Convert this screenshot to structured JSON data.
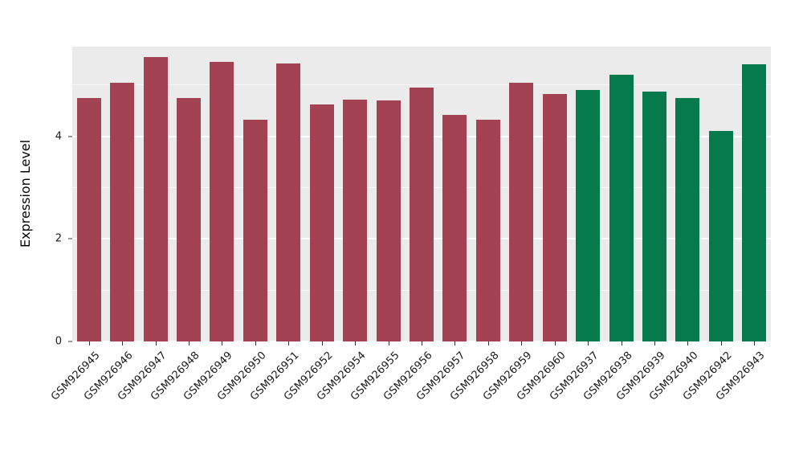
{
  "chart_data": {
    "type": "bar",
    "title": "",
    "xlabel": "",
    "ylabel": "Expression Level",
    "ylim": [
      0,
      5.75
    ],
    "y_major_ticks": [
      0,
      2,
      4
    ],
    "y_minor_ticks": [
      1,
      3,
      5
    ],
    "y_tick_labels": [
      "0",
      "2",
      "4"
    ],
    "grid": "on",
    "legend": "none",
    "panel_background": "#EBEBEB",
    "grid_color": "#FFFFFF",
    "group_colors": {
      "red": "#A34252",
      "green": "#067A4C"
    },
    "bars": [
      {
        "label": "GSM926945",
        "value": 4.75,
        "group": "red"
      },
      {
        "label": "GSM926946",
        "value": 5.05,
        "group": "red"
      },
      {
        "label": "GSM926947",
        "value": 5.55,
        "group": "red"
      },
      {
        "label": "GSM926948",
        "value": 4.75,
        "group": "red"
      },
      {
        "label": "GSM926949",
        "value": 5.45,
        "group": "red"
      },
      {
        "label": "GSM926950",
        "value": 4.32,
        "group": "red"
      },
      {
        "label": "GSM926951",
        "value": 5.42,
        "group": "red"
      },
      {
        "label": "GSM926952",
        "value": 4.62,
        "group": "red"
      },
      {
        "label": "GSM926954",
        "value": 4.72,
        "group": "red"
      },
      {
        "label": "GSM926955",
        "value": 4.7,
        "group": "red"
      },
      {
        "label": "GSM926956",
        "value": 4.95,
        "group": "red"
      },
      {
        "label": "GSM926957",
        "value": 4.42,
        "group": "red"
      },
      {
        "label": "GSM926958",
        "value": 4.32,
        "group": "red"
      },
      {
        "label": "GSM926959",
        "value": 5.05,
        "group": "red"
      },
      {
        "label": "GSM926960",
        "value": 4.83,
        "group": "red"
      },
      {
        "label": "GSM926937",
        "value": 4.9,
        "group": "green"
      },
      {
        "label": "GSM926938",
        "value": 5.2,
        "group": "green"
      },
      {
        "label": "GSM926939",
        "value": 4.87,
        "group": "green"
      },
      {
        "label": "GSM926940",
        "value": 4.75,
        "group": "green"
      },
      {
        "label": "GSM926942",
        "value": 4.11,
        "group": "green"
      },
      {
        "label": "GSM926943",
        "value": 5.4,
        "group": "green"
      }
    ]
  }
}
